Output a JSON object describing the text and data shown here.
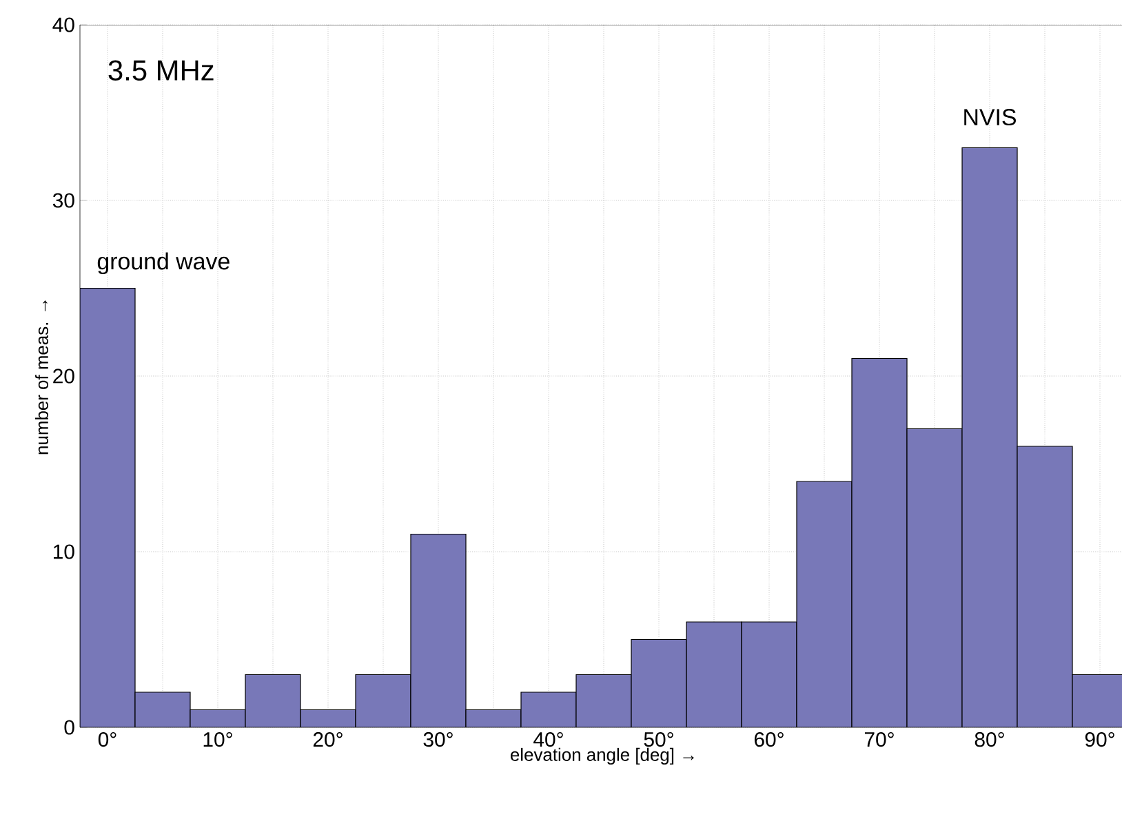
{
  "chart_data": {
    "type": "histogram",
    "xlabel": "elevation angle  [deg]  →",
    "ylabel": "number of meas.  →",
    "bins": [
      -2.5,
      2.5,
      7.5,
      12.5,
      17.5,
      22.5,
      27.5,
      32.5,
      37.5,
      42.5,
      47.5,
      52.5,
      57.5,
      62.5,
      67.5,
      72.5,
      77.5,
      82.5,
      87.5,
      92.5
    ],
    "values": [
      25,
      2,
      1,
      3,
      1,
      3,
      11,
      1,
      2,
      3,
      5,
      6,
      6,
      14,
      21,
      17,
      33,
      16,
      3
    ],
    "color": "#7878b8",
    "xlim": [
      -2.5,
      92.5
    ],
    "xticks": [
      {
        "value": 0,
        "label": "0°"
      },
      {
        "value": 5,
        "label": null
      },
      {
        "value": 10,
        "label": "10°"
      },
      {
        "value": 15,
        "label": null
      },
      {
        "value": 20,
        "label": "20°"
      },
      {
        "value": 25,
        "label": null
      },
      {
        "value": 30,
        "label": "30°"
      },
      {
        "value": 35,
        "label": null
      },
      {
        "value": 40,
        "label": "40°"
      },
      {
        "value": 45,
        "label": null
      },
      {
        "value": 50,
        "label": "50°"
      },
      {
        "value": 55,
        "label": null
      },
      {
        "value": 60,
        "label": "60°"
      },
      {
        "value": 65,
        "label": null
      },
      {
        "value": 70,
        "label": "70°"
      },
      {
        "value": 75,
        "label": null
      },
      {
        "value": 80,
        "label": "80°"
      },
      {
        "value": 85,
        "label": null
      },
      {
        "value": 90,
        "label": "90°"
      }
    ],
    "ylim": [
      0,
      40
    ],
    "yticks": [
      0,
      10,
      20,
      30,
      40
    ],
    "grid": true,
    "annotations": [
      "3.5 MHz",
      {
        "text": "ground wave",
        "x": 0,
        "y": 25
      },
      {
        "text": "NVIS",
        "x": 80,
        "y": 33
      }
    ]
  }
}
